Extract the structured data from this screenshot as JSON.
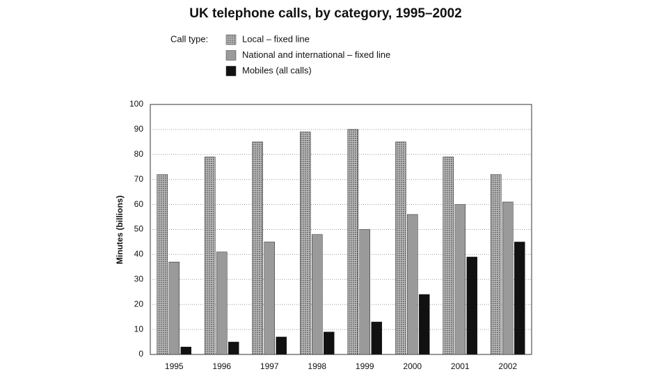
{
  "chart_data": {
    "type": "bar",
    "title": "UK telephone calls, by category, 1995–2002",
    "legend_title": "Call type:",
    "y_label": "Minutes (billions)",
    "categories": [
      "1995",
      "1996",
      "1997",
      "1998",
      "1999",
      "2000",
      "2001",
      "2002"
    ],
    "series": [
      {
        "name": "Local – fixed line",
        "color": "#b8b8b8",
        "pattern": "checker",
        "values": [
          72,
          79,
          85,
          89,
          90,
          85,
          79,
          72
        ]
      },
      {
        "name": "National and international – fixed line",
        "color": "#9a9a9a",
        "values": [
          37,
          41,
          45,
          48,
          50,
          56,
          60,
          61
        ]
      },
      {
        "name": "Mobiles (all calls)",
        "color": "#111111",
        "values": [
          3,
          5,
          7,
          9,
          13,
          24,
          39,
          45
        ]
      }
    ],
    "ylim": [
      0,
      100
    ],
    "yticks": [
      0,
      10,
      20,
      30,
      40,
      50,
      60,
      70,
      80,
      90,
      100
    ],
    "grid": true
  }
}
